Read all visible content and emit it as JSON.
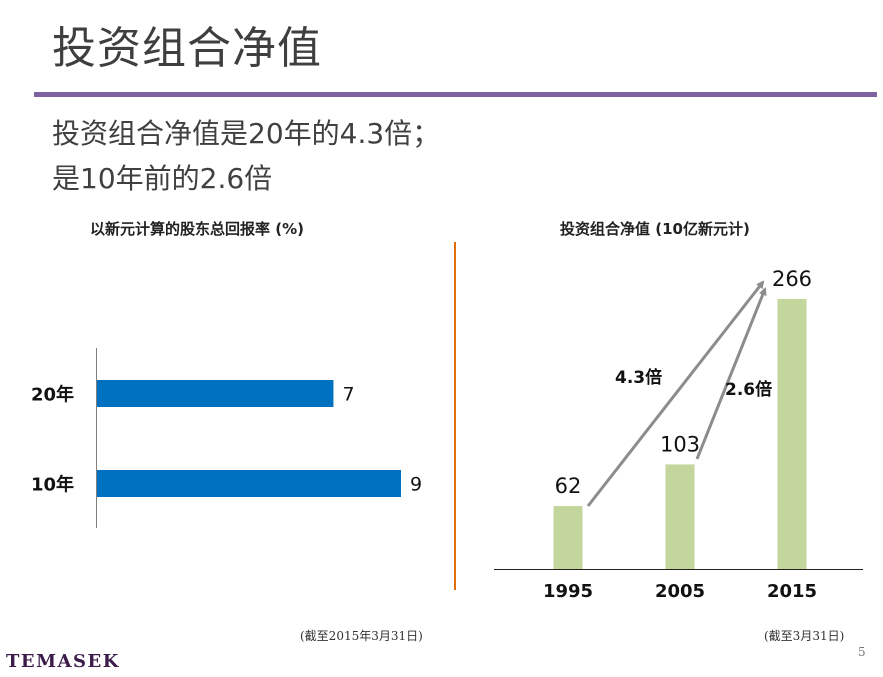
{
  "header": {
    "title": "投资组合净值",
    "subtitle_line1": "投资组合净值是20年的4.3倍；",
    "subtitle_line2": "是10年前的2.6倍"
  },
  "colors": {
    "rule": "#7f63a1",
    "divider": "#e36c0a",
    "bar_blue": "#0070c0",
    "bar_green": "#c3d69b",
    "arrow": "#8c8c8c",
    "logo": "#3b1c4a"
  },
  "chart_data": [
    {
      "type": "bar",
      "orientation": "horizontal",
      "title": "以新元计算的股东总回报率 (%)",
      "categories": [
        "20年",
        "10年"
      ],
      "values": [
        7,
        9
      ],
      "data_labels": [
        "7",
        "9"
      ],
      "xlabel": "",
      "ylabel": "",
      "xlim": [
        0,
        9
      ],
      "grid": false,
      "footnote": "(截至2015年3月31日)"
    },
    {
      "type": "bar",
      "orientation": "vertical",
      "title": "投资组合净值 (10亿新元计)",
      "categories": [
        "1995",
        "2005",
        "2015"
      ],
      "values": [
        62,
        103,
        266
      ],
      "data_labels": [
        "62",
        "103",
        "266"
      ],
      "xlabel": "",
      "ylabel": "",
      "ylim": [
        0,
        266
      ],
      "grid": false,
      "annotations": [
        {
          "from": "1995",
          "to": "2015",
          "label": "4.3倍"
        },
        {
          "from": "2005",
          "to": "2015",
          "label": "2.6倍"
        }
      ],
      "footnote": "(截至3月31日)"
    }
  ],
  "footer": {
    "logo": "TEMASEK",
    "page_number": "5"
  }
}
